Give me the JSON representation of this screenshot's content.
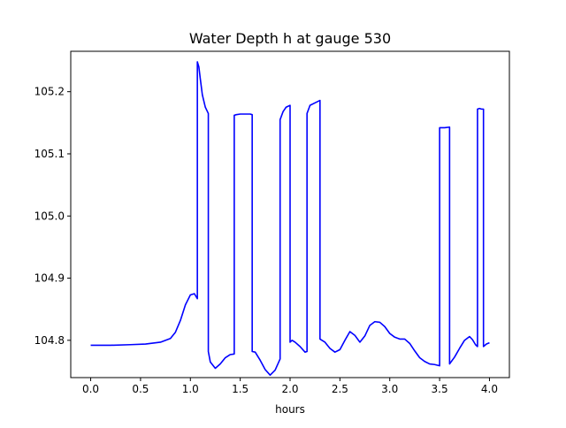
{
  "chart_data": {
    "type": "line",
    "title": "Water Depth h at gauge 530",
    "xlabel": "hours",
    "ylabel": "",
    "xlim": [
      -0.2,
      4.2
    ],
    "ylim": [
      104.74,
      105.265
    ],
    "xticks": [
      0.0,
      0.5,
      1.0,
      1.5,
      2.0,
      2.5,
      3.0,
      3.5,
      4.0
    ],
    "xtick_labels": [
      "0.0",
      "0.5",
      "1.0",
      "1.5",
      "2.0",
      "2.5",
      "3.0",
      "3.5",
      "4.0"
    ],
    "yticks": [
      104.8,
      104.9,
      105.0,
      105.1,
      105.2
    ],
    "ytick_labels": [
      "104.8",
      "104.9",
      "105.0",
      "105.1",
      "105.2"
    ],
    "grid": false,
    "legend": "none",
    "series": [
      {
        "color": "#0000ff",
        "x": [
          0.0,
          0.2,
          0.4,
          0.55,
          0.7,
          0.8,
          0.85,
          0.9,
          0.95,
          1.0,
          1.04,
          1.07,
          1.07,
          1.085,
          1.1,
          1.12,
          1.15,
          1.18,
          1.18,
          1.2,
          1.25,
          1.3,
          1.35,
          1.4,
          1.44,
          1.44,
          1.46,
          1.5,
          1.55,
          1.6,
          1.62,
          1.62,
          1.65,
          1.7,
          1.75,
          1.8,
          1.85,
          1.9,
          1.9,
          1.93,
          1.96,
          2.0,
          2.0,
          2.02,
          2.05,
          2.1,
          2.15,
          2.17,
          2.17,
          2.2,
          2.25,
          2.3,
          2.3,
          2.35,
          2.4,
          2.45,
          2.5,
          2.55,
          2.6,
          2.65,
          2.7,
          2.75,
          2.8,
          2.85,
          2.9,
          2.95,
          3.0,
          3.05,
          3.1,
          3.15,
          3.2,
          3.25,
          3.3,
          3.35,
          3.4,
          3.45,
          3.5,
          3.5,
          3.55,
          3.6,
          3.6,
          3.65,
          3.7,
          3.75,
          3.8,
          3.83,
          3.86,
          3.88,
          3.88,
          3.9,
          3.92,
          3.94,
          3.94,
          3.97,
          4.0
        ],
        "y": [
          104.792,
          104.792,
          104.793,
          104.794,
          104.797,
          104.803,
          104.813,
          104.832,
          104.857,
          104.873,
          104.875,
          104.867,
          105.248,
          105.24,
          105.22,
          105.195,
          105.175,
          105.165,
          104.782,
          104.765,
          104.755,
          104.762,
          104.772,
          104.777,
          104.778,
          105.162,
          105.163,
          105.164,
          105.164,
          105.164,
          105.163,
          104.782,
          104.781,
          104.768,
          104.753,
          104.744,
          104.752,
          104.77,
          105.155,
          105.168,
          105.175,
          105.178,
          104.797,
          104.8,
          104.797,
          104.79,
          104.781,
          104.782,
          105.165,
          105.178,
          105.182,
          105.186,
          104.802,
          104.797,
          104.787,
          104.781,
          104.785,
          104.8,
          104.814,
          104.808,
          104.797,
          104.807,
          104.824,
          104.83,
          104.829,
          104.822,
          104.811,
          104.805,
          104.802,
          104.802,
          104.795,
          104.783,
          104.772,
          104.766,
          104.762,
          104.761,
          104.759,
          105.142,
          105.142,
          105.143,
          104.762,
          104.773,
          104.787,
          104.8,
          104.806,
          104.801,
          104.793,
          104.79,
          105.172,
          105.173,
          105.172,
          105.172,
          104.79,
          104.794,
          104.796
        ]
      }
    ]
  }
}
